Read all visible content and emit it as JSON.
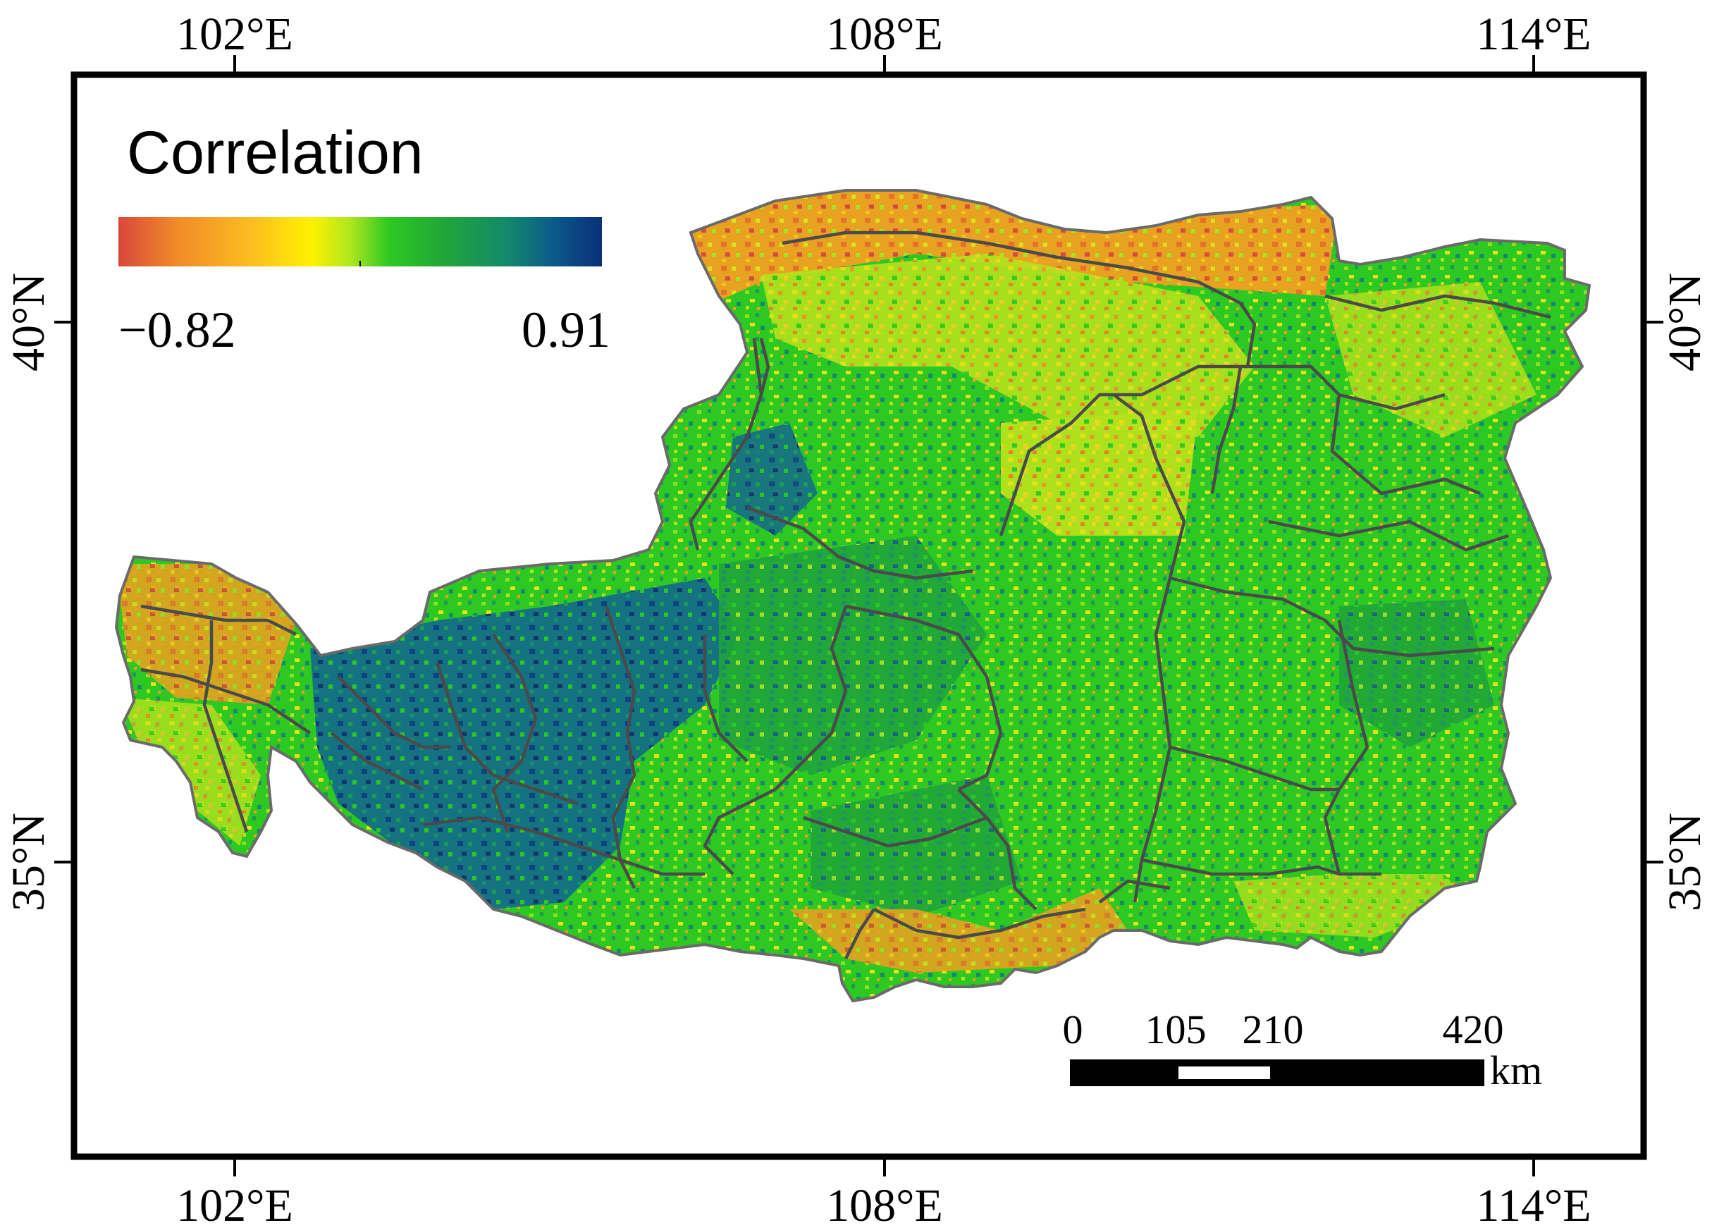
{
  "map": {
    "longitude_ticks": [
      "102°E",
      "108°E",
      "114°E"
    ],
    "latitude_ticks": [
      "40°N",
      "35°N"
    ],
    "legend": {
      "title": "Correlation",
      "min_label": "−0.82",
      "max_label": "0.91",
      "min_value": -0.82,
      "max_value": 0.91,
      "colors": [
        "#d9473a",
        "#f08a2a",
        "#fdbf1f",
        "#fef200",
        "#aee61e",
        "#2ec822",
        "#1fa43a",
        "#148a6a",
        "#0b5a8a",
        "#0a2f78"
      ]
    },
    "scale_bar": {
      "labels": [
        "0",
        "105",
        "210",
        "420"
      ],
      "unit": "km"
    },
    "colors": {
      "boundary": "#4a4a4a",
      "frame": "#000000",
      "green": "#2ec822",
      "teal": "#148a6a",
      "blue": "#0a3a86",
      "yellow": "#e8e21a",
      "orange": "#ee7a2a"
    }
  }
}
